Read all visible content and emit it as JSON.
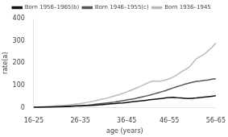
{
  "chart_data": {
    "type": "line",
    "xlabel": "age (years)",
    "ylabel": "rate(a)",
    "categories": [
      "16–25",
      null,
      null,
      null,
      null,
      null,
      null,
      null,
      null,
      null,
      null,
      null,
      "26–35",
      null,
      null,
      null,
      null,
      null,
      null,
      null,
      null,
      null,
      null,
      null,
      "36–45",
      null,
      null,
      null,
      null,
      null,
      null,
      null,
      null,
      null,
      null,
      "46–55",
      null,
      null,
      null,
      null,
      null,
      null,
      null,
      null,
      null,
      null,
      null,
      "56–65"
    ],
    "series": [
      {
        "name": "Born 1956–1965(b)",
        "color": "#111111",
        "values": [
          2,
          2,
          3,
          3,
          4,
          4,
          5,
          5,
          6,
          6,
          7,
          8,
          8,
          9,
          10,
          11,
          12,
          14,
          15,
          16,
          18,
          19,
          21,
          22,
          24,
          26,
          28,
          30,
          32,
          34,
          36,
          38,
          40,
          42,
          44,
          46,
          47,
          45,
          44,
          43,
          42,
          43,
          44,
          46,
          48,
          50,
          52,
          54
        ]
      },
      {
        "name": "Born 1946–1955(c)",
        "color": "#555555",
        "values": [
          2,
          3,
          3,
          4,
          4,
          5,
          5,
          6,
          7,
          7,
          8,
          9,
          10,
          11,
          12,
          14,
          16,
          18,
          20,
          22,
          24,
          26,
          29,
          32,
          35,
          38,
          41,
          45,
          49,
          53,
          57,
          62,
          67,
          72,
          77,
          83,
          89,
          95,
          100,
          106,
          110,
          115,
          118,
          120,
          123,
          125,
          128,
          130
        ]
      },
      {
        "name": "Born 1936–1945",
        "color": "#bbbbbb",
        "values": [
          3,
          4,
          5,
          6,
          7,
          8,
          9,
          10,
          11,
          13,
          15,
          17,
          19,
          22,
          25,
          28,
          32,
          36,
          40,
          44,
          49,
          54,
          59,
          65,
          71,
          78,
          85,
          92,
          100,
          108,
          116,
          120,
          118,
          120,
          125,
          130,
          138,
          148,
          160,
          170,
          180,
          200,
          220,
          230,
          240,
          255,
          270,
          290
        ]
      }
    ],
    "ylim": [
      0,
      400
    ],
    "yticks": [
      0,
      100,
      200,
      300,
      400
    ],
    "grid": false,
    "legend": "top"
  }
}
